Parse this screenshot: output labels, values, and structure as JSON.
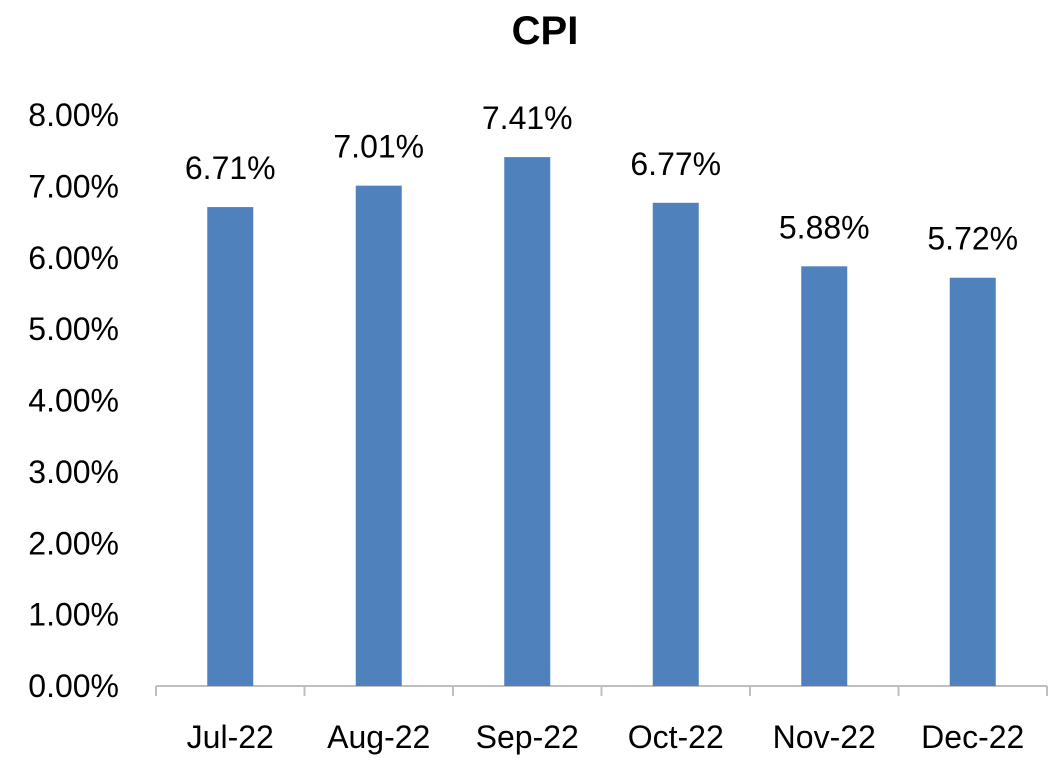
{
  "chart_data": {
    "type": "bar",
    "title": "CPI",
    "xlabel": "",
    "ylabel": "",
    "categories": [
      "Jul-22",
      "Aug-22",
      "Sep-22",
      "Oct-22",
      "Nov-22",
      "Dec-22"
    ],
    "values": [
      6.71,
      7.01,
      7.41,
      6.77,
      5.88,
      5.72
    ],
    "value_labels": [
      "6.71%",
      "7.01%",
      "7.41%",
      "6.77%",
      "5.88%",
      "5.72%"
    ],
    "ylim": [
      0,
      8
    ],
    "yticks": [
      0,
      1,
      2,
      3,
      4,
      5,
      6,
      7,
      8
    ],
    "ytick_labels": [
      "0.00%",
      "1.00%",
      "2.00%",
      "3.00%",
      "4.00%",
      "5.00%",
      "6.00%",
      "7.00%",
      "8.00%"
    ],
    "grid": false,
    "legend": "none",
    "bar_color": "#4F81BD",
    "axis_color": "#BFBFBF"
  }
}
